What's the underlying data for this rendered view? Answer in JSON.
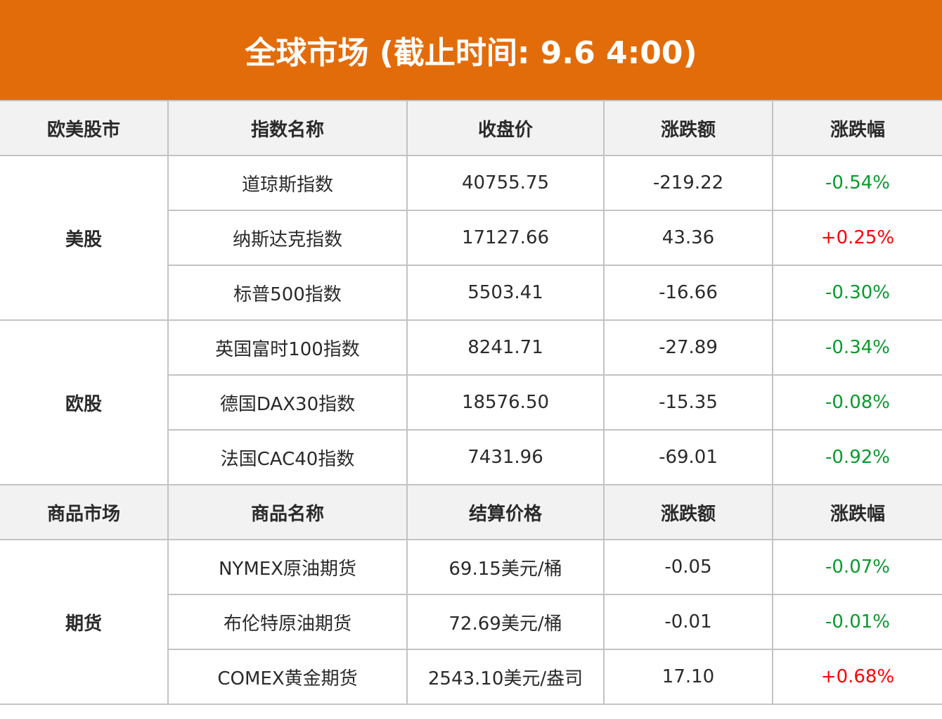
{
  "title": "全球市场 (截止时间: 9.6 4:00)",
  "colors": {
    "header_bg": "#E36C0A",
    "up": "#ff0000",
    "down": "#0a9a2e"
  },
  "sections": [
    {
      "headers": [
        "欧美股市",
        "指数名称",
        "收盘价",
        "涨跌额",
        "涨跌幅"
      ],
      "groups": [
        {
          "name": "美股",
          "rows": [
            {
              "name": "道琼斯指数",
              "price": "40755.75",
              "change": "-219.22",
              "pct": "-0.54%",
              "dir": "down"
            },
            {
              "name": "纳斯达克指数",
              "price": "17127.66",
              "change": "43.36",
              "pct": "+0.25%",
              "dir": "up"
            },
            {
              "name": "标普500指数",
              "price": "5503.41",
              "change": "-16.66",
              "pct": "-0.30%",
              "dir": "down"
            }
          ]
        },
        {
          "name": "欧股",
          "rows": [
            {
              "name": "英国富时100指数",
              "price": "8241.71",
              "change": "-27.89",
              "pct": "-0.34%",
              "dir": "down"
            },
            {
              "name": "德国DAX30指数",
              "price": "18576.50",
              "change": "-15.35",
              "pct": "-0.08%",
              "dir": "down"
            },
            {
              "name": "法国CAC40指数",
              "price": "7431.96",
              "change": "-69.01",
              "pct": "-0.92%",
              "dir": "down"
            }
          ]
        }
      ]
    },
    {
      "headers": [
        "商品市场",
        "商品名称",
        "结算价格",
        "涨跌额",
        "涨跌幅"
      ],
      "groups": [
        {
          "name": "期货",
          "rows": [
            {
              "name": "NYMEX原油期货",
              "price": "69.15美元/桶",
              "change": "-0.05",
              "pct": "-0.07%",
              "dir": "down"
            },
            {
              "name": "布伦特原油期货",
              "price": "72.69美元/桶",
              "change": "-0.01",
              "pct": "-0.01%",
              "dir": "down"
            },
            {
              "name": "COMEX黄金期货",
              "price": "2543.10美元/盎司",
              "change": "17.10",
              "pct": "+0.68%",
              "dir": "up"
            }
          ]
        }
      ]
    }
  ]
}
